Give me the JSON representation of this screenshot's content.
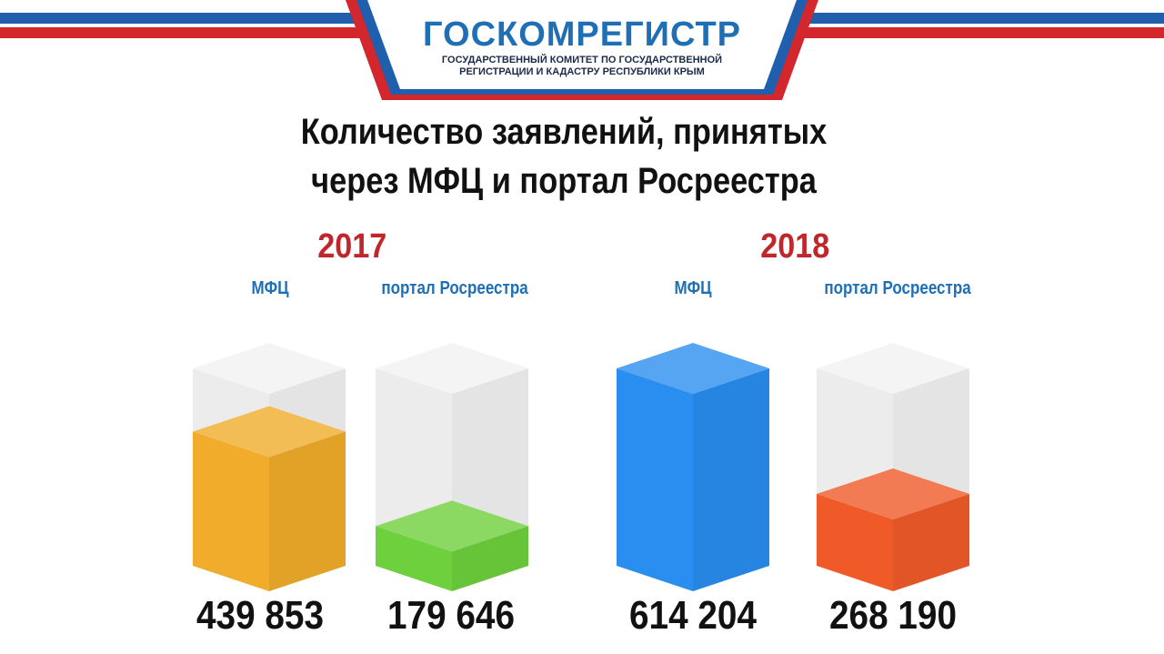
{
  "logo": {
    "name": "ГОСКОМРЕГИСТР",
    "subtitle_line1": "ГОСУДАРСТВЕННЫЙ КОМИТЕТ ПО ГОСУДАРСТВЕННОЙ",
    "subtitle_line2": "РЕГИСТРАЦИИ И КАДАСТРУ РЕСПУБЛИКИ КРЫМ"
  },
  "colors": {
    "flag_blue": "#1f5fad",
    "flag_red": "#d3262d",
    "logo_blue": "#1f6fb6",
    "year_red": "#c0272d"
  },
  "chart_data": {
    "type": "bar",
    "title_line1": "Количество заявлений, принятых",
    "title_line2": "через МФЦ и портал Росреестра",
    "groups": [
      {
        "year": "2017",
        "bars": [
          {
            "label": "МФЦ",
            "value": 439853,
            "value_text": "439 853",
            "color": "#f0ac2a"
          },
          {
            "label": "портал Росреестра",
            "value": 179646,
            "value_text": "179 646",
            "color": "#6ed03c"
          }
        ]
      },
      {
        "year": "2018",
        "bars": [
          {
            "label": "МФЦ",
            "value": 614204,
            "value_text": "614 204",
            "color": "#2a8ef0"
          },
          {
            "label": "портал Росреестра",
            "value": 268190,
            "value_text": "268 190",
            "color": "#f05a28"
          }
        ]
      }
    ],
    "ylim": [
      0,
      614204
    ],
    "grid": false,
    "legend": "none"
  }
}
